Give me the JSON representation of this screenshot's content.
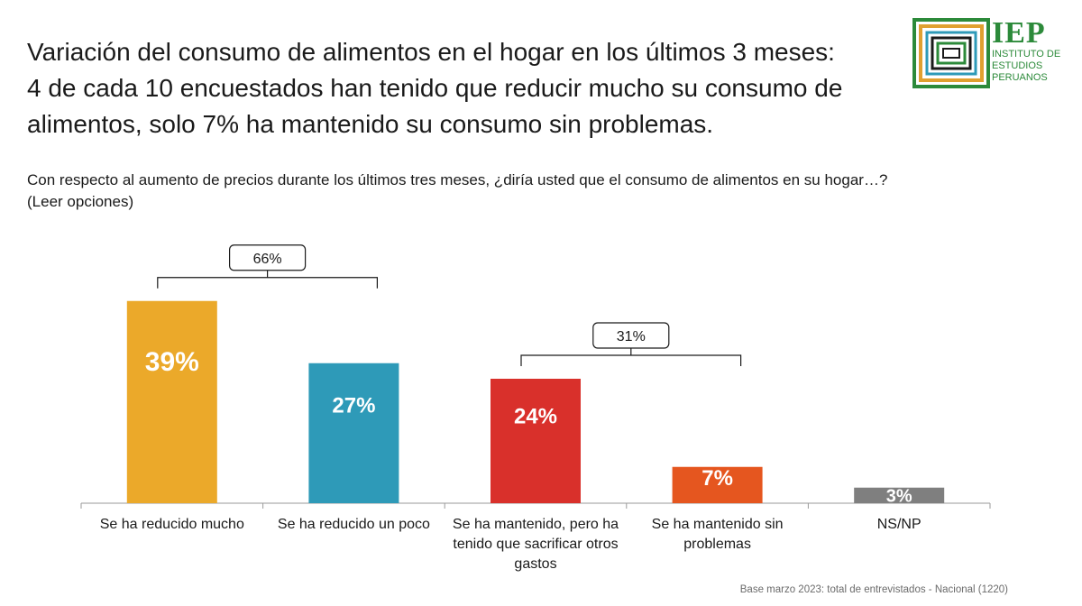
{
  "title_lines": [
    "Variación del consumo de alimentos en el hogar en los últimos 3 meses:",
    "4 de cada 10 encuestados han tenido que reducir mucho su consumo de",
    "alimentos, solo 7% ha mantenido su consumo sin problemas."
  ],
  "question_lines": [
    "Con respecto al aumento de precios durante los últimos tres meses, ¿diría usted que el consumo de alimentos en su hogar…?",
    "(Leer opciones)"
  ],
  "logo": {
    "name": "IEP",
    "subtitle_lines": [
      "INSTITUTO DE",
      "ESTUDIOS",
      "PERUANOS"
    ],
    "color": "#2c8a3a"
  },
  "footer": "Base marzo 2023: total de entrevistados - Nacional (1220)",
  "chart_data": {
    "type": "bar",
    "categories": [
      [
        "Se ha reducido mucho"
      ],
      [
        "Se ha reducido un poco"
      ],
      [
        "Se ha mantenido, pero ha",
        "tenido que sacrificar otros",
        "gastos"
      ],
      [
        "Se ha mantenido sin",
        "problemas"
      ],
      [
        "NS/NP"
      ]
    ],
    "values": [
      39,
      27,
      24,
      7,
      3
    ],
    "data_labels": [
      "39%",
      "27%",
      "24%",
      "7%",
      "3%"
    ],
    "colors": [
      "#eba92a",
      "#2e9ab8",
      "#d9302b",
      "#e5561f",
      "#7f7f7f"
    ],
    "ylim": [
      0,
      40
    ],
    "grid": false,
    "legend": "none",
    "groups": [
      {
        "label": "66%",
        "from": 0,
        "to": 1
      },
      {
        "label": "31%",
        "from": 2,
        "to": 3
      }
    ]
  }
}
